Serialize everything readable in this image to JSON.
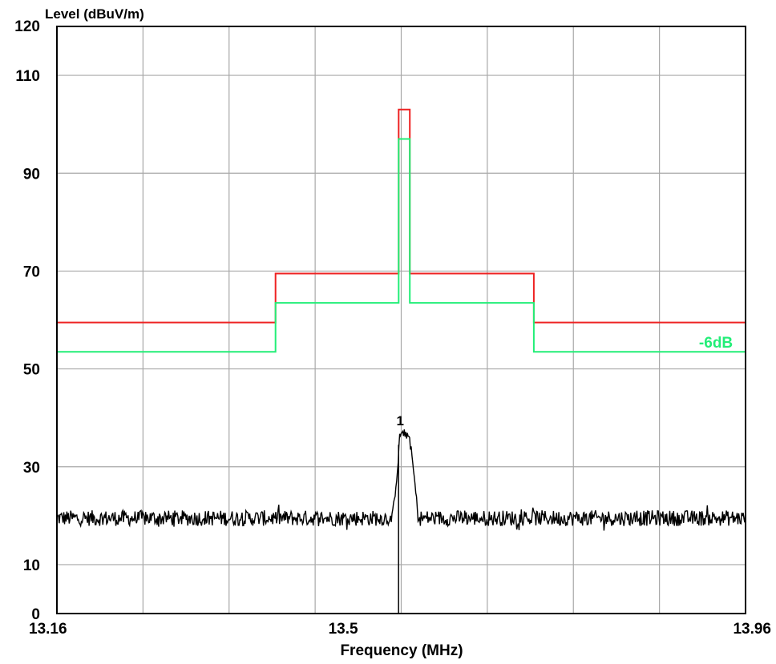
{
  "chart_data": {
    "type": "line",
    "title": "",
    "ylabel": "Level (dBuV/m)",
    "xlabel": "Frequency (MHz)",
    "xlim": [
      13.16,
      13.96
    ],
    "ylim": [
      0,
      120
    ],
    "grid": true,
    "y_ticks": [
      {
        "value": 0,
        "label": "0"
      },
      {
        "value": 10,
        "label": "10"
      },
      {
        "value": 30,
        "label": "30"
      },
      {
        "value": 50,
        "label": "50"
      },
      {
        "value": 70,
        "label": "70"
      },
      {
        "value": 90,
        "label": "90"
      },
      {
        "value": 110,
        "label": "110"
      },
      {
        "value": 120,
        "label": "120"
      }
    ],
    "x_ticks": [
      {
        "value": 13.16,
        "label": "13.16"
      },
      {
        "value": 13.5,
        "label": "13.5"
      },
      {
        "value": 13.96,
        "label": "13.96"
      }
    ],
    "series": [
      {
        "color": "#ee2222",
        "style": "step",
        "points": [
          [
            13.16,
            59.5
          ],
          [
            13.414,
            59.5
          ],
          [
            13.414,
            69.5
          ],
          [
            13.557,
            69.5
          ],
          [
            13.557,
            103
          ],
          [
            13.57,
            103
          ],
          [
            13.57,
            69.5
          ],
          [
            13.714,
            69.5
          ],
          [
            13.714,
            59.5
          ],
          [
            13.96,
            59.5
          ]
        ]
      },
      {
        "name": "-6dB",
        "color": "#22ee77",
        "style": "step",
        "points": [
          [
            13.16,
            53.5
          ],
          [
            13.414,
            53.5
          ],
          [
            13.414,
            63.5
          ],
          [
            13.557,
            63.5
          ],
          [
            13.557,
            97
          ],
          [
            13.57,
            97
          ],
          [
            13.57,
            63.5
          ],
          [
            13.714,
            63.5
          ],
          [
            13.714,
            53.5
          ],
          [
            13.96,
            53.5
          ]
        ]
      },
      {
        "color": "#000000",
        "style": "noise",
        "baseline": 19.5,
        "points": [
          [
            13.16,
            19.5
          ],
          [
            13.55,
            19.5
          ],
          [
            13.556,
            30.0
          ],
          [
            13.558,
            36.0
          ],
          [
            13.56,
            37.0
          ],
          [
            13.565,
            36.5
          ],
          [
            13.57,
            36.0
          ],
          [
            13.575,
            28.0
          ],
          [
            13.58,
            19.5
          ],
          [
            13.96,
            19.5
          ]
        ]
      }
    ],
    "markers": [
      {
        "label": "1",
        "x": 13.5625,
        "y": 37.5,
        "drop_line": true
      }
    ],
    "annotations": [
      {
        "text": "-6dB",
        "color": "#22ee77",
        "x": 13.935,
        "y": 55.5
      }
    ]
  }
}
